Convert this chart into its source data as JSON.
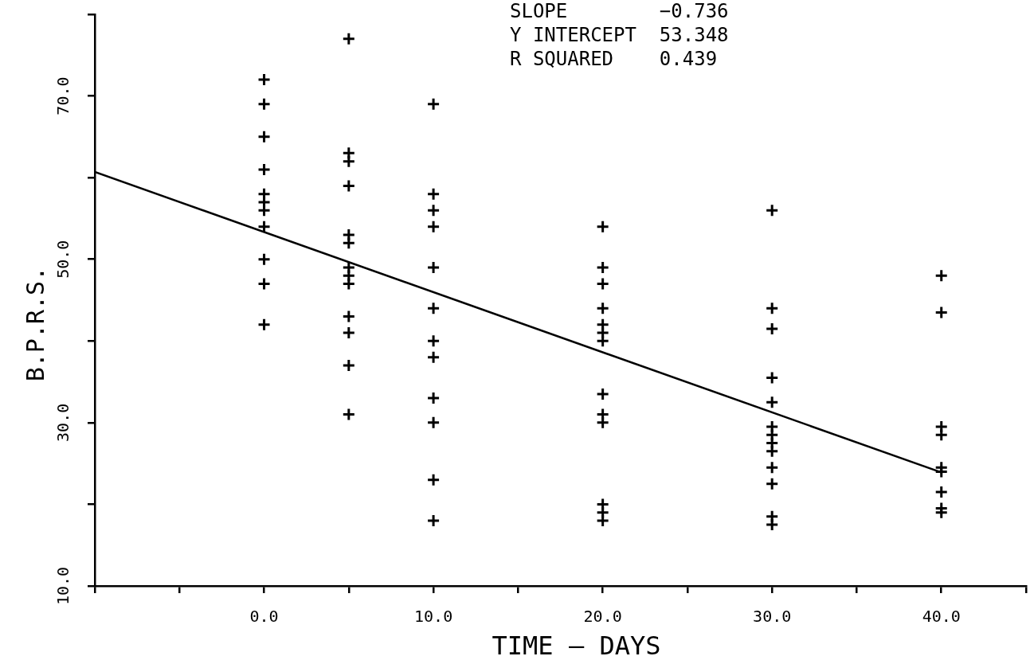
{
  "chart_data": {
    "type": "scatter",
    "xlabel": "TIME — DAYS",
    "ylabel": "B.P.R.S.",
    "xlim": [
      -10,
      45
    ],
    "xticks": [
      {
        "value": -10,
        "label": null
      },
      {
        "value": -5,
        "label": null
      },
      {
        "value": 0,
        "label": "0.0"
      },
      {
        "value": 5,
        "label": null
      },
      {
        "value": 10,
        "label": "10.0"
      },
      {
        "value": 15,
        "label": null
      },
      {
        "value": 20,
        "label": "20.0"
      },
      {
        "value": 25,
        "label": null
      },
      {
        "value": 30,
        "label": "30.0"
      },
      {
        "value": 35,
        "label": null
      },
      {
        "value": 40,
        "label": "40.0"
      },
      {
        "value": 45,
        "label": null
      }
    ],
    "ylim": [
      10,
      80
    ],
    "yticks": [
      {
        "value": 10,
        "label": "10.0"
      },
      {
        "value": 20,
        "label": null
      },
      {
        "value": 30,
        "label": "30.0"
      },
      {
        "value": 40,
        "label": null
      },
      {
        "value": 50,
        "label": "50.0"
      },
      {
        "value": 60,
        "label": null
      },
      {
        "value": 70,
        "label": "70.0"
      },
      {
        "value": 80,
        "label": null
      }
    ],
    "marker": "cross",
    "grid": false,
    "legend": false,
    "series": [
      {
        "color": "#000000",
        "x": [
          0,
          0,
          0,
          0,
          0,
          0,
          0,
          0,
          0,
          0,
          0,
          5,
          5,
          5,
          5,
          5,
          5,
          5,
          5,
          5,
          5,
          5,
          5,
          5,
          10,
          10,
          10,
          10,
          10,
          10,
          10,
          10,
          10,
          10,
          10,
          10,
          20,
          20,
          20,
          20,
          20,
          20,
          20,
          20,
          20,
          20,
          20,
          20,
          20,
          30,
          30,
          30,
          30,
          30,
          30,
          30,
          30,
          30,
          30,
          30,
          30,
          30,
          40,
          40,
          40,
          40,
          40,
          40,
          40,
          40,
          40
        ],
        "values": [
          72,
          69,
          65,
          61,
          58,
          57,
          56,
          54,
          50,
          47,
          42,
          77,
          63,
          62,
          59,
          53,
          52,
          49,
          48,
          47,
          43,
          41,
          37,
          31,
          69,
          58,
          56,
          54,
          49,
          44,
          40,
          38,
          33,
          30,
          23,
          18,
          54,
          49,
          47,
          44,
          42,
          41,
          40,
          33.5,
          31,
          30,
          20,
          19,
          18,
          56,
          44,
          41.5,
          35.5,
          32.5,
          29.5,
          28.5,
          27.5,
          26.5,
          24.5,
          22.5,
          18.5,
          17.5,
          48,
          43.5,
          29.5,
          28.5,
          24.5,
          24,
          21.5,
          19.5,
          19
        ]
      },
      {
        "type": "line",
        "color": "#000000",
        "marker": "none",
        "x": [
          -10,
          40
        ],
        "values": [
          60.7,
          23.9
        ]
      }
    ],
    "annotations": [
      "SLOPE        −0.736",
      "Y INTERCEPT  53.348",
      "R SQUARED    0.439"
    ]
  }
}
